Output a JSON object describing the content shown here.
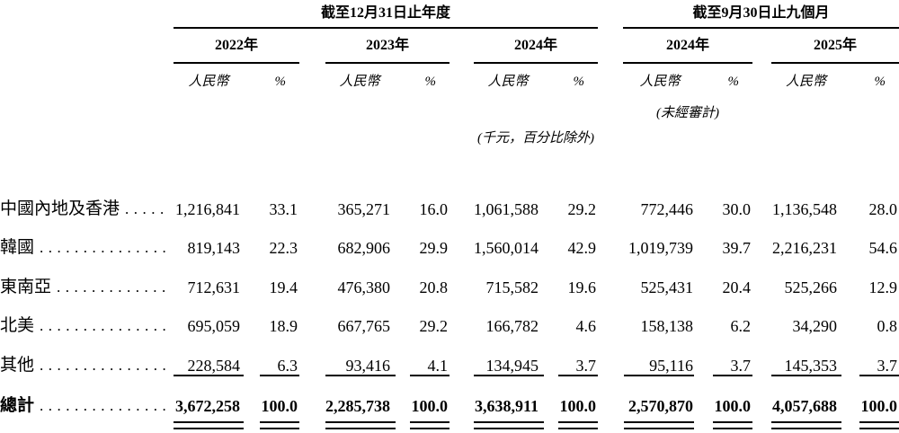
{
  "colors": {
    "text": "#000000",
    "background": "#ffffff",
    "rule": "#000000"
  },
  "table": {
    "sections": [
      {
        "title": "截至12月31日止年度",
        "years": [
          "2022年",
          "2023年",
          "2024年"
        ]
      },
      {
        "title": "截至9月30日止九個月",
        "years": [
          "2024年",
          "2025年"
        ]
      }
    ],
    "column_subheaders": {
      "currency": "人民幣",
      "percent": "%"
    },
    "notes": {
      "unaudited": "(未經審計)",
      "units": "(千元，百分比除外)"
    },
    "leader_dots": "......................................................",
    "rows": [
      {
        "label": "中國內地及香港",
        "values": [
          "1,216,841",
          "33.1",
          "365,271",
          "16.0",
          "1,061,588",
          "29.2",
          "772,446",
          "30.0",
          "1,136,548",
          "28.0"
        ]
      },
      {
        "label": "韓國",
        "values": [
          "819,143",
          "22.3",
          "682,906",
          "29.9",
          "1,560,014",
          "42.9",
          "1,019,739",
          "39.7",
          "2,216,231",
          "54.6"
        ]
      },
      {
        "label": "東南亞",
        "values": [
          "712,631",
          "19.4",
          "476,380",
          "20.8",
          "715,582",
          "19.6",
          "525,431",
          "20.4",
          "525,266",
          "12.9"
        ]
      },
      {
        "label": "北美",
        "values": [
          "695,059",
          "18.9",
          "667,765",
          "29.2",
          "166,782",
          "4.6",
          "158,138",
          "6.2",
          "34,290",
          "0.8"
        ]
      },
      {
        "label": "其他",
        "values": [
          "228,584",
          "6.3",
          "93,416",
          "4.1",
          "134,945",
          "3.7",
          "95,116",
          "3.7",
          "145,353",
          "3.7"
        ]
      }
    ],
    "total": {
      "label": "總計",
      "values": [
        "3,672,258",
        "100.0",
        "2,285,738",
        "100.0",
        "3,638,911",
        "100.0",
        "2,570,870",
        "100.0",
        "4,057,688",
        "100.0"
      ]
    }
  }
}
